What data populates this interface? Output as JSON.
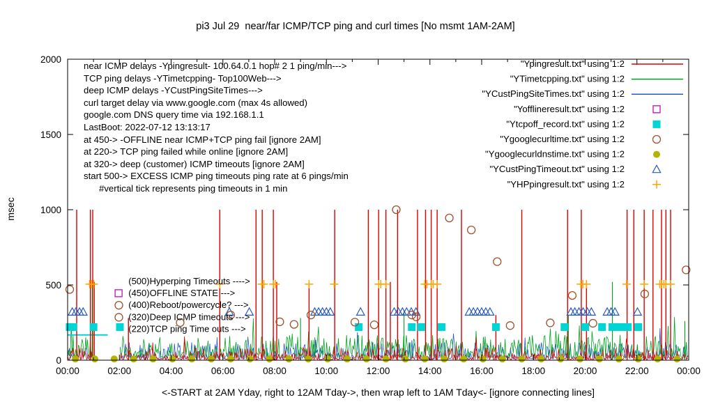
{
  "chart_data": {
    "type": "line",
    "title": "pi3 Jul 29  near/far ICMP/TCP ping and curl times [No msmt 1AM-2AM]",
    "ylabel": "msec",
    "xlabel": "<-START at 2AM Yday, right to 12AM Tday->, then wrap left to 1AM Tday<- [ignore connecting lines]",
    "ylim": [
      0,
      2000
    ],
    "xlim_hours": [
      0,
      24
    ],
    "yticks": [
      0,
      500,
      1000,
      1500,
      2000
    ],
    "xtick_hours": [
      0,
      2,
      4,
      6,
      8,
      10,
      12,
      14,
      16,
      18,
      20,
      22,
      24
    ],
    "xtick_labels": [
      "00:00",
      "02:00",
      "04:00",
      "06:00",
      "08:00",
      "10:00",
      "12:00",
      "14:00",
      "16:00",
      "18:00",
      "20:00",
      "22:00",
      "00:00"
    ],
    "no_measurement_gap_hours": [
      1,
      2
    ],
    "grid": "off",
    "legend_position": "top-right-inside",
    "colors": {
      "red": "#dd0000",
      "green": "#00a020",
      "blue": "#2458c8",
      "magenta": "#c020c0",
      "cyan": "#00d5d5",
      "brown": "#a0522d",
      "olive": "#b3b300",
      "orange": "#ffa500",
      "axis": "#000000"
    },
    "legend": [
      {
        "label": "\"Ypingresult.txt\" using 1:2",
        "marker": "line",
        "color_key": "red"
      },
      {
        "label": "\"YTimetcpping.txt\" using 1:2",
        "marker": "line",
        "color_key": "green"
      },
      {
        "label": "\"YCustPingSiteTimes.txt\" using 1:2",
        "marker": "line",
        "color_key": "blue"
      },
      {
        "label": "\"Yofflineresult.txt\" using 1:2",
        "marker": "square-open",
        "color_key": "magenta"
      },
      {
        "label": "\"Ytcpoff_record.txt\" using 1:2",
        "marker": "square-filled",
        "color_key": "cyan"
      },
      {
        "label": "\"Ygooglecurltime.txt\" using 1:2",
        "marker": "circle-open",
        "color_key": "brown"
      },
      {
        "label": "\"Ygooglecurldnstime.txt\" using 1:2",
        "marker": "circle-filled",
        "color_key": "olive"
      },
      {
        "label": "\"YCustPingTimeout.txt\" using 1:2",
        "marker": "triangle-open",
        "color_key": "blue"
      },
      {
        "label": "\"YHPpingresult.txt\" using 1:2",
        "marker": "plus",
        "color_key": "orange"
      }
    ],
    "annotations": [
      "near ICMP delays -Ypingresult- 100.64.0.1 hop# 2 1 ping/min--->",
      "TCP ping delays -YTimetcpping- Top100Web--->",
      "deep ICMP delays -YCustPingSiteTimes--->",
      "curl target delay via www.google.com (max 4s allowed)",
      "google.com DNS query time via 192.168.1.1",
      "LastBoot: 2022-07-12 13:13:17",
      "at 450-> -OFFLINE near ICMP+TCP ping fail [ignore 2AM]",
      "at 220-> TCP ping failed while online [ignore 2AM]",
      "at 320-> deep (customer) ICMP timeouts [ignore 2AM]",
      "start 500-> EXCESS ICMP ping timeouts ping rate at 6 pings/min",
      "      #vertical tick represents ping timeouts in 1 min"
    ],
    "level_labels": [
      {
        "x": 2.35,
        "y": 523,
        "text": "(500)Hyperping Timeouts ---->"
      },
      {
        "x": 2.35,
        "y": 445,
        "text": "(450)OFFLINE STATE --->"
      },
      {
        "x": 2.35,
        "y": 365,
        "text": "(400)Reboot/powercycle? --->"
      },
      {
        "x": 2.35,
        "y": 285,
        "text": "(320)Deep ICMP timeouts --->"
      },
      {
        "x": 2.35,
        "y": 205,
        "text": "(220)TCP ping Time outs --->"
      }
    ],
    "series": {
      "near_icmp_spikes": {
        "color_key": "red",
        "points": [
          [
            0.35,
            1000
          ],
          [
            0.88,
            1000
          ],
          [
            0.97,
            1000
          ],
          [
            1.03,
            520
          ],
          [
            2.35,
            280
          ],
          [
            5.88,
            1000
          ],
          [
            7.28,
            1000
          ],
          [
            7.52,
            1000
          ],
          [
            7.95,
            1000
          ],
          [
            8.08,
            520
          ],
          [
            9.33,
            500
          ],
          [
            10.32,
            1000
          ],
          [
            11.62,
            1000
          ],
          [
            12.02,
            1000
          ],
          [
            12.3,
            1000
          ],
          [
            12.47,
            520
          ],
          [
            12.75,
            1000
          ],
          [
            13.52,
            1000
          ],
          [
            13.83,
            1000
          ],
          [
            14.05,
            1000
          ],
          [
            14.28,
            1000
          ],
          [
            15.22,
            1000
          ],
          [
            16.55,
            300
          ],
          [
            17.55,
            1000
          ],
          [
            19.32,
            1000
          ],
          [
            19.85,
            1000
          ],
          [
            20.05,
            520
          ],
          [
            21.62,
            1000
          ],
          [
            21.88,
            1000
          ],
          [
            22.28,
            1000
          ],
          [
            22.62,
            1000
          ],
          [
            22.95,
            1000
          ],
          [
            23.12,
            1000
          ],
          [
            23.3,
            1000
          ]
        ]
      },
      "tcp_spikes": {
        "color_key": "green",
        "points": [
          [
            0.95,
            500
          ],
          [
            9.0,
            280
          ],
          [
            13.0,
            330
          ],
          [
            19.35,
            300
          ],
          [
            21.05,
            520
          ],
          [
            23.85,
            260
          ]
        ]
      },
      "hyperping_timeouts": {
        "color_key": "orange",
        "y": 505,
        "x": [
          0.85,
          0.93,
          1.01,
          5.88,
          7.5,
          7.58,
          7.95,
          8.03,
          9.33,
          10.3,
          12.02,
          12.1,
          12.3,
          13.8,
          13.88,
          14.05,
          14.13,
          14.28,
          19.83,
          19.91,
          20.05,
          21.6,
          22.28,
          22.88,
          22.96,
          23.04,
          23.12,
          23.3
        ]
      },
      "cust_ping_timeouts": {
        "color_key": "blue",
        "y": 320,
        "x": [
          0.18,
          0.32,
          0.46,
          0.6,
          6.25,
          7.02,
          9.55,
          9.7,
          9.85,
          10.0,
          10.15,
          11.32,
          12.62,
          12.78,
          12.94,
          13.1,
          13.28,
          13.46,
          15.52,
          15.68,
          15.84,
          16.0,
          16.16,
          16.32,
          19.45,
          19.6,
          19.76,
          19.92,
          20.08,
          20.24,
          20.85,
          21.0,
          21.15,
          22.02
        ]
      },
      "tcp_offline": {
        "color_key": "cyan",
        "y": 220,
        "x": [
          0.08,
          0.22,
          1.0,
          2.02,
          11.25,
          13.3,
          13.66,
          14.45,
          16.55,
          19.2,
          20.0,
          20.65,
          21.05,
          21.25,
          21.45,
          21.65,
          22.05
        ]
      },
      "offline_state": {
        "color_key": "magenta",
        "points": [
          [
            1.97,
            445
          ]
        ]
      },
      "curl_times": {
        "color_key": "brown",
        "points": [
          [
            0.08,
            470
          ],
          [
            1.98,
            365
          ],
          [
            1.98,
            285
          ],
          [
            4.35,
            250
          ],
          [
            6.3,
            300
          ],
          [
            8.2,
            255
          ],
          [
            8.75,
            238
          ],
          [
            9.4,
            300
          ],
          [
            11.1,
            253
          ],
          [
            11.85,
            235
          ],
          [
            12.7,
            1000
          ],
          [
            13.3,
            300
          ],
          [
            13.47,
            288
          ],
          [
            14.75,
            945
          ],
          [
            15.6,
            865
          ],
          [
            16.6,
            655
          ],
          [
            17.1,
            230
          ],
          [
            18.65,
            248
          ],
          [
            19.5,
            430
          ],
          [
            20.3,
            245
          ],
          [
            22.3,
            440
          ],
          [
            23.9,
            600
          ]
        ]
      },
      "dns_times": {
        "color_key": "olive",
        "y": 8,
        "x": [
          0.3,
          1.05,
          1.8,
          2.55,
          3.3,
          4.05,
          4.8,
          5.55,
          6.3,
          7.05,
          7.8,
          8.55,
          9.3,
          10.05,
          10.8,
          11.55,
          12.3,
          13.05,
          13.8,
          14.55,
          15.3,
          16.05,
          16.8,
          17.55,
          18.3,
          19.05,
          19.8,
          20.55,
          21.3,
          22.05,
          22.8,
          23.55
        ]
      },
      "tcp_off_segment": {
        "color_key": "cyan",
        "from": [
          0,
          168
        ],
        "to": [
          1.55,
          168
        ]
      },
      "baseline_noise": [
        {
          "name": "deep_icmp",
          "color_key": "blue",
          "seed": 11,
          "base": 10,
          "amp": 110,
          "pow": 2.8,
          "spike_prob": 0.025,
          "spike_amp": 150
        },
        {
          "name": "tcp_ping",
          "color_key": "green",
          "seed": 23,
          "base": 18,
          "amp": 150,
          "pow": 2.4,
          "spike_prob": 0.03,
          "spike_amp": 180
        },
        {
          "name": "near_icmp",
          "color_key": "red",
          "seed": 5,
          "base": 4,
          "amp": 80,
          "pow": 3.2,
          "spike_prob": 0.02,
          "spike_amp": 120
        }
      ]
    }
  }
}
